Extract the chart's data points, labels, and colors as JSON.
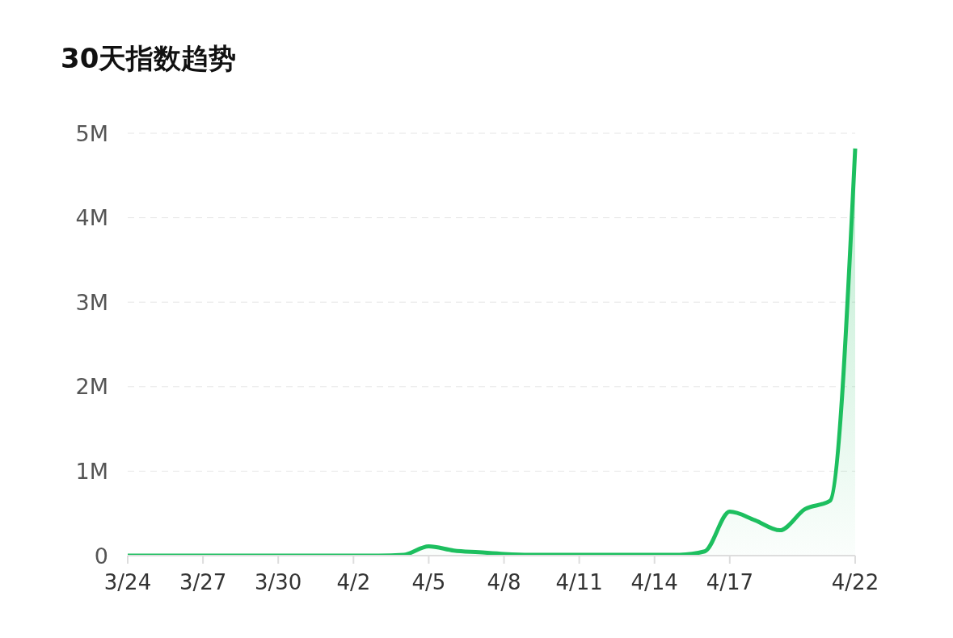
{
  "chart_data": {
    "type": "area",
    "title": "30天指数趋势",
    "categories": [
      "3/24",
      null,
      null,
      "3/27",
      null,
      null,
      "3/30",
      null,
      null,
      "4/2",
      null,
      null,
      "4/5",
      null,
      null,
      "4/8",
      null,
      null,
      "4/11",
      null,
      null,
      "4/14",
      null,
      null,
      "4/17",
      null,
      null,
      null,
      null,
      "4/22"
    ],
    "series": [
      {
        "color": "#1dbf5f",
        "values": [
          0,
          0,
          0,
          0,
          0,
          0,
          0,
          0,
          0,
          0,
          0,
          10000,
          110000,
          60000,
          40000,
          20000,
          10000,
          10000,
          10000,
          10000,
          10000,
          10000,
          10000,
          50000,
          520000,
          420000,
          300000,
          550000,
          650000,
          4820000
        ]
      }
    ],
    "ylim": [
      0,
      5000000
    ],
    "yticks": [
      0,
      {
        "value": 1000000,
        "label": "1M"
      },
      {
        "value": 2000000,
        "label": "2M"
      },
      {
        "value": 3000000,
        "label": "3M"
      },
      {
        "value": 4000000,
        "label": "4M"
      },
      {
        "value": 5000000,
        "label": "5M"
      }
    ],
    "grid": "y"
  }
}
